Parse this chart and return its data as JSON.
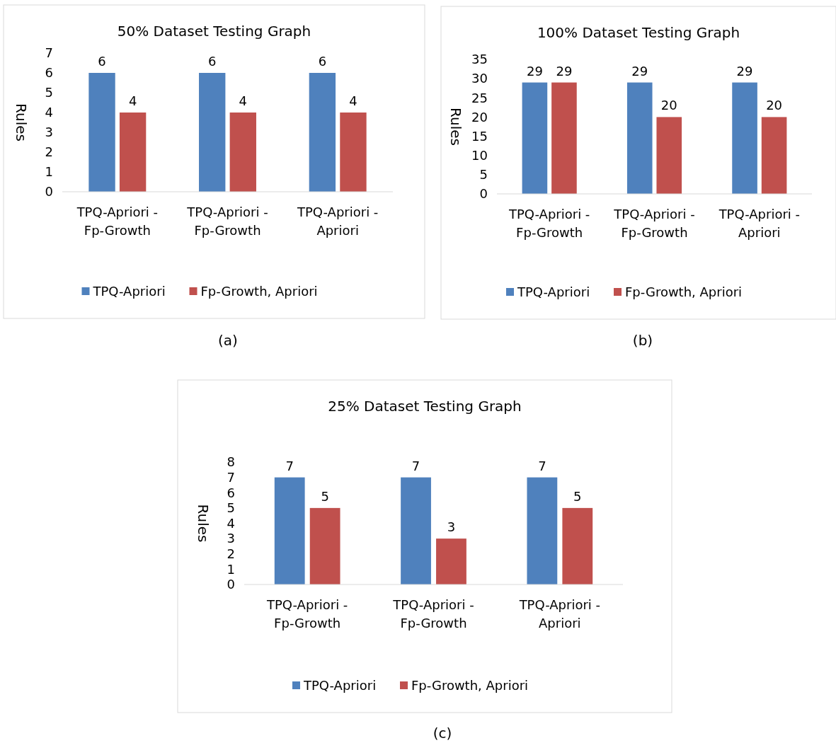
{
  "chart_data": [
    {
      "type": "bar",
      "title": "50% Dataset Testing Graph",
      "ylabel": "Rules",
      "categories": [
        "TPQ-Apriori - Fp-Growth",
        "TPQ-Apriori - Fp-Growth",
        "TPQ-Apriori - Apriori"
      ],
      "series": [
        {
          "name": "TPQ-Apriori",
          "color": "#4f81bd",
          "values": [
            6,
            6,
            6
          ]
        },
        {
          "name": "Fp-Growth, Apriori",
          "color": "#c0504d",
          "values": [
            4,
            4,
            4
          ]
        }
      ],
      "ylim": [
        0,
        7
      ],
      "yticks": [
        0,
        1,
        2,
        3,
        4,
        5,
        6,
        7
      ],
      "data_labels": true,
      "legend": "bottom",
      "annotations": [
        "(a)"
      ]
    },
    {
      "type": "bar",
      "title": "100% Dataset Testing Graph",
      "ylabel": "Rules",
      "categories": [
        "TPQ-Apriori - Fp-Growth",
        "TPQ-Apriori - Fp-Growth",
        "TPQ-Apriori - Apriori"
      ],
      "series": [
        {
          "name": "TPQ-Apriori",
          "color": "#4f81bd",
          "values": [
            29,
            29,
            29
          ]
        },
        {
          "name": "Fp-Growth, Apriori",
          "color": "#c0504d",
          "values": [
            29,
            20,
            20
          ]
        }
      ],
      "ylim": [
        0,
        35
      ],
      "yticks": [
        0,
        5,
        10,
        15,
        20,
        25,
        30,
        35
      ],
      "data_labels": true,
      "legend": "bottom",
      "annotations": [
        "(b)"
      ]
    },
    {
      "type": "bar",
      "title": "25% Dataset Testing Graph",
      "ylabel": "Rules",
      "categories": [
        "TPQ-Apriori - Fp-Growth",
        "TPQ-Apriori - Fp-Growth",
        "TPQ-Apriori - Apriori"
      ],
      "series": [
        {
          "name": "TPQ-Apriori",
          "color": "#4f81bd",
          "values": [
            7,
            7,
            7
          ]
        },
        {
          "name": "Fp-Growth, Apriori",
          "color": "#c0504d",
          "values": [
            5,
            3,
            5
          ]
        }
      ],
      "ylim": [
        0,
        8
      ],
      "yticks": [
        0,
        1,
        2,
        3,
        4,
        5,
        6,
        7,
        8
      ],
      "data_labels": true,
      "legend": "bottom",
      "annotations": [
        "(c)"
      ]
    }
  ]
}
